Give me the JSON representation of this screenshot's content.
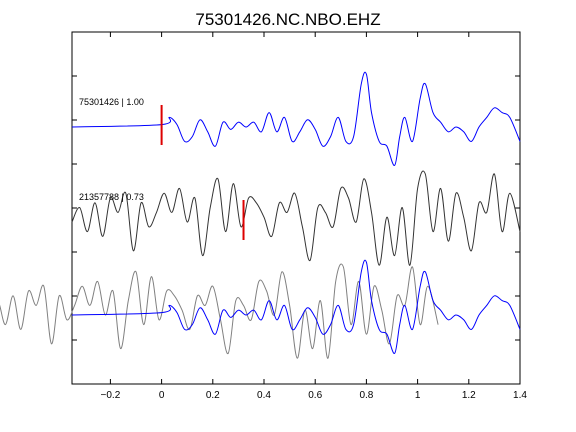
{
  "chart_data": {
    "type": "line",
    "title": "75301426.NC.NBO.EHZ",
    "xlabel": "",
    "ylabel": "",
    "xlim": [
      -0.35,
      1.4
    ],
    "x_ticks": [
      -0.2,
      0,
      0.2,
      0.4,
      0.6,
      0.8,
      1.0,
      1.2,
      1.4
    ],
    "x_tick_labels": [
      "−0.2",
      "0",
      "0.2",
      "0.4",
      "0.6",
      "0.8",
      "1",
      "1.2",
      "1.4"
    ],
    "y_tick_count": 8,
    "grid": false,
    "colors": {
      "reference": "#0000ff",
      "candidate": "#333333",
      "candidate_overlay": "#808080",
      "pick": "#dd0000",
      "axes": "#000000"
    },
    "traces": [
      {
        "label": "75301426 | 1.00",
        "color": "#0000ff",
        "pick_time": 0.0,
        "x": [
          -0.35,
          0.0,
          0.03,
          0.06,
          0.09,
          0.12,
          0.15,
          0.18,
          0.21,
          0.24,
          0.27,
          0.3,
          0.33,
          0.36,
          0.39,
          0.42,
          0.45,
          0.48,
          0.51,
          0.54,
          0.57,
          0.6,
          0.63,
          0.66,
          0.69,
          0.72,
          0.75,
          0.78,
          0.8,
          0.82,
          0.85,
          0.88,
          0.91,
          0.93,
          0.95,
          0.98,
          1.01,
          1.03,
          1.06,
          1.09,
          1.12,
          1.15,
          1.18,
          1.21,
          1.24,
          1.27,
          1.3,
          1.33,
          1.36,
          1.4
        ],
        "y": [
          0.0,
          0.05,
          0.2,
          0.05,
          -0.3,
          -0.2,
          0.15,
          -0.1,
          -0.4,
          0.1,
          -0.05,
          0.1,
          0.0,
          0.1,
          -0.1,
          0.3,
          -0.1,
          0.2,
          -0.3,
          -0.1,
          0.15,
          -0.05,
          -0.4,
          -0.2,
          0.2,
          -0.3,
          -0.2,
          0.9,
          1.1,
          0.3,
          -0.3,
          -0.4,
          -0.8,
          -0.2,
          0.2,
          -0.3,
          0.6,
          0.9,
          0.3,
          0.1,
          -0.1,
          0.0,
          -0.1,
          -0.3,
          0.0,
          0.2,
          0.4,
          0.3,
          0.2,
          -0.3
        ]
      },
      {
        "label": "21357788 | 0.73",
        "color": "#333333",
        "pick_time": 0.32,
        "x": [
          -0.35,
          -0.32,
          -0.29,
          -0.26,
          -0.23,
          -0.2,
          -0.17,
          -0.14,
          -0.11,
          -0.08,
          -0.05,
          -0.02,
          0.01,
          0.04,
          0.07,
          0.1,
          0.13,
          0.16,
          0.19,
          0.22,
          0.25,
          0.28,
          0.31,
          0.34,
          0.37,
          0.4,
          0.43,
          0.46,
          0.49,
          0.52,
          0.55,
          0.58,
          0.61,
          0.64,
          0.67,
          0.7,
          0.73,
          0.76,
          0.79,
          0.82,
          0.85,
          0.88,
          0.91,
          0.94,
          0.97,
          1.0,
          1.03,
          1.06,
          1.09,
          1.12,
          1.15,
          1.18,
          1.21,
          1.24,
          1.27,
          1.3,
          1.33,
          1.36,
          1.4
        ],
        "y": [
          0.0,
          0.3,
          -0.2,
          0.4,
          -0.3,
          0.5,
          0.2,
          0.6,
          -0.6,
          0.4,
          -0.1,
          0.2,
          0.6,
          0.2,
          0.7,
          0.0,
          0.5,
          -0.7,
          0.3,
          0.9,
          -0.2,
          0.8,
          -0.1,
          0.5,
          0.4,
          0.1,
          -0.3,
          0.4,
          0.2,
          0.6,
          -0.1,
          -0.8,
          0.3,
          0.2,
          -0.1,
          0.7,
          0.5,
          0.0,
          0.9,
          0.2,
          -0.9,
          0.1,
          -0.7,
          0.3,
          -0.9,
          0.7,
          1.0,
          -0.2,
          0.7,
          -0.4,
          0.6,
          0.1,
          -0.6,
          0.4,
          0.2,
          1.0,
          -0.2,
          0.6,
          -0.2
        ]
      }
    ],
    "overlay": {
      "series": [
        "75301426 | 1.00",
        "21357788 | 0.73"
      ]
    }
  }
}
